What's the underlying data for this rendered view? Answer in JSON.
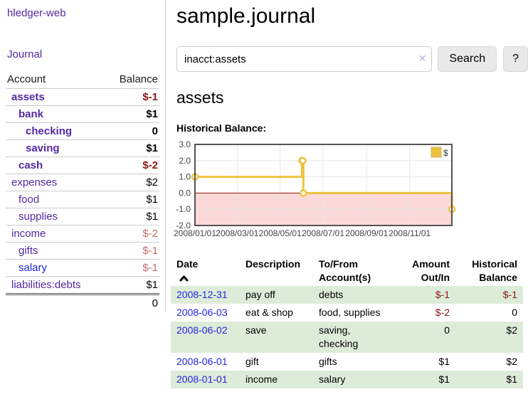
{
  "sidebar": {
    "brand": "hledger-web",
    "nav_journal": "Journal",
    "accounts_table": {
      "headers": {
        "account": "Account",
        "balance": "Balance"
      },
      "rows": [
        {
          "name": "assets",
          "indent": 1,
          "bold": true,
          "balance": "$-1",
          "bal_class": "neg-strong",
          "link": "visited"
        },
        {
          "name": "bank",
          "indent": 2,
          "bold": true,
          "balance": "$1",
          "bal_class": "",
          "link": "visited"
        },
        {
          "name": "checking",
          "indent": 3,
          "bold": true,
          "balance": "0",
          "bal_class": "",
          "link": "visited"
        },
        {
          "name": "saving",
          "indent": 3,
          "bold": true,
          "balance": "$1",
          "bal_class": "",
          "link": "visited"
        },
        {
          "name": "cash",
          "indent": 2,
          "bold": true,
          "balance": "$-2",
          "bal_class": "neg-strong",
          "link": "visited"
        },
        {
          "name": "expenses",
          "indent": 1,
          "bold": false,
          "balance": "$2",
          "bal_class": "",
          "link": "visited"
        },
        {
          "name": "food",
          "indent": 2,
          "bold": false,
          "balance": "$1",
          "bal_class": "",
          "link": "visited"
        },
        {
          "name": "supplies",
          "indent": 2,
          "bold": false,
          "balance": "$1",
          "bal_class": "",
          "link": "visited"
        },
        {
          "name": "income",
          "indent": 1,
          "bold": false,
          "balance": "$-2",
          "bal_class": "neg-soft",
          "link": "visited"
        },
        {
          "name": "gifts",
          "indent": 2,
          "bold": false,
          "balance": "$-1",
          "bal_class": "neg-soft",
          "link": "visited"
        },
        {
          "name": "salary",
          "indent": 2,
          "bold": false,
          "balance": "$-1",
          "bal_class": "neg-soft",
          "link": "unvisited"
        },
        {
          "name": "liabilities:debts",
          "indent": 1,
          "bold": false,
          "balance": "$1",
          "bal_class": "",
          "link": "visited"
        }
      ],
      "total": "0"
    }
  },
  "main": {
    "title": "sample.journal",
    "search": {
      "value": "inacct:assets",
      "clear_icon": "×",
      "button_label": "Search",
      "help_label": "?"
    },
    "account_heading": "assets",
    "chart_label": "Historical Balance:",
    "register_table": {
      "headers": [
        {
          "line1": "Date",
          "line2": "",
          "align": "left",
          "sorted": "asc"
        },
        {
          "line1": "Description",
          "line2": "",
          "align": "left"
        },
        {
          "line1": "To/From",
          "line2": "Account(s)",
          "align": "left"
        },
        {
          "line1": "Amount",
          "line2": "Out/In",
          "align": "right"
        },
        {
          "line1": "Historical",
          "line2": "Balance",
          "align": "right"
        }
      ],
      "rows": [
        {
          "date": "2008-12-31",
          "description": "pay off",
          "accounts": "debts",
          "amount": "$-1",
          "amount_neg": true,
          "balance": "$-1",
          "balance_neg": true
        },
        {
          "date": "2008-06-03",
          "description": "eat & shop",
          "accounts": "food, supplies",
          "amount": "$-2",
          "amount_neg": true,
          "balance": "0",
          "balance_neg": false
        },
        {
          "date": "2008-06-02",
          "description": "save",
          "accounts": "saving, checking",
          "amount": "0",
          "amount_neg": false,
          "balance": "$2",
          "balance_neg": false
        },
        {
          "date": "2008-06-01",
          "description": "gift",
          "accounts": "gifts",
          "amount": "$1",
          "amount_neg": false,
          "balance": "$2",
          "balance_neg": false
        },
        {
          "date": "2008-01-01",
          "description": "income",
          "accounts": "salary",
          "amount": "$1",
          "amount_neg": false,
          "balance": "$1",
          "balance_neg": false
        }
      ]
    }
  },
  "chart_data": {
    "type": "line",
    "step": true,
    "title": "Historical Balance",
    "series": [
      {
        "name": "$",
        "color": "#edc240",
        "points": [
          [
            "2008-01-01",
            1
          ],
          [
            "2008-06-01",
            2
          ],
          [
            "2008-06-02",
            2
          ],
          [
            "2008-06-03",
            0
          ],
          [
            "2008-12-31",
            -1
          ]
        ]
      }
    ],
    "x_range": [
      "2008-01-01",
      "2008-12-31"
    ],
    "x_tick_labels": [
      "2008/01/01",
      "2008/03/01",
      "2008/05/01",
      "2008/07/01",
      "2008/09/01",
      "2008/11/01"
    ],
    "y_tick_labels": [
      "3.0",
      "2.0",
      "1.0",
      "0.0",
      "-1.0",
      "-2.0"
    ],
    "ylim": [
      -2,
      3
    ],
    "grid": true,
    "legend_position": "top-right",
    "legend_label": "$",
    "negative_fill": "#fbd9d9",
    "zero_line_color": "#991111",
    "grid_color": "#e7e7e7",
    "border_color": "#545454",
    "tick_label_color": "#444444"
  },
  "colors": {
    "link_visited_purple": "#5229a3",
    "link_blue": "#2424e0",
    "negative_strong": "#8e1515",
    "negative_soft": "#c56a6a",
    "row_green": "#ddecd9",
    "chart_gold": "#edc240",
    "button_gray": "#e9e9e9"
  }
}
